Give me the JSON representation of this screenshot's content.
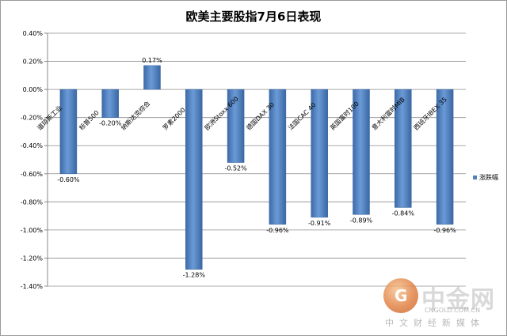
{
  "chart_data": {
    "type": "bar",
    "title": "欧美主要股指7月6日表现",
    "categories": [
      "道琼斯工业",
      "标普500",
      "纳斯达克综合",
      "罗素2000",
      "欧洲Stoxx 600",
      "德国DAX 30",
      "法国CAC 40",
      "英国富时100",
      "意大利富时MIB",
      "西班牙IBEX 35"
    ],
    "series": [
      {
        "name": "涨跌幅",
        "values": [
          -0.6,
          -0.2,
          0.17,
          -1.28,
          -0.52,
          -0.96,
          -0.91,
          -0.89,
          -0.84,
          -0.96
        ]
      }
    ],
    "value_labels": [
      "-0.60%",
      "-0.20%",
      "0.17%",
      "-1.28%",
      "-0.52%",
      "-0.96%",
      "-0.91%",
      "-0.89%",
      "-0.84%",
      "-0.96%"
    ],
    "y_ticks": [
      0.4,
      0.2,
      0.0,
      -0.2,
      -0.4,
      -0.6,
      -0.8,
      -1.0,
      -1.2,
      -1.4
    ],
    "y_tick_labels": [
      "0.40%",
      "0.20%",
      "0.00%",
      "-0.20%",
      "-0.40%",
      "-0.60%",
      "-0.80%",
      "-1.00%",
      "-1.20%",
      "-1.40%"
    ],
    "ylim": [
      -1.4,
      0.4
    ],
    "grid": true,
    "legend_position": "right",
    "bar_color": "#4f81bd"
  },
  "watermark": {
    "name": "中金网",
    "url": "CNGOLD.COM.CN",
    "subtitle": "中文财经新媒体"
  }
}
